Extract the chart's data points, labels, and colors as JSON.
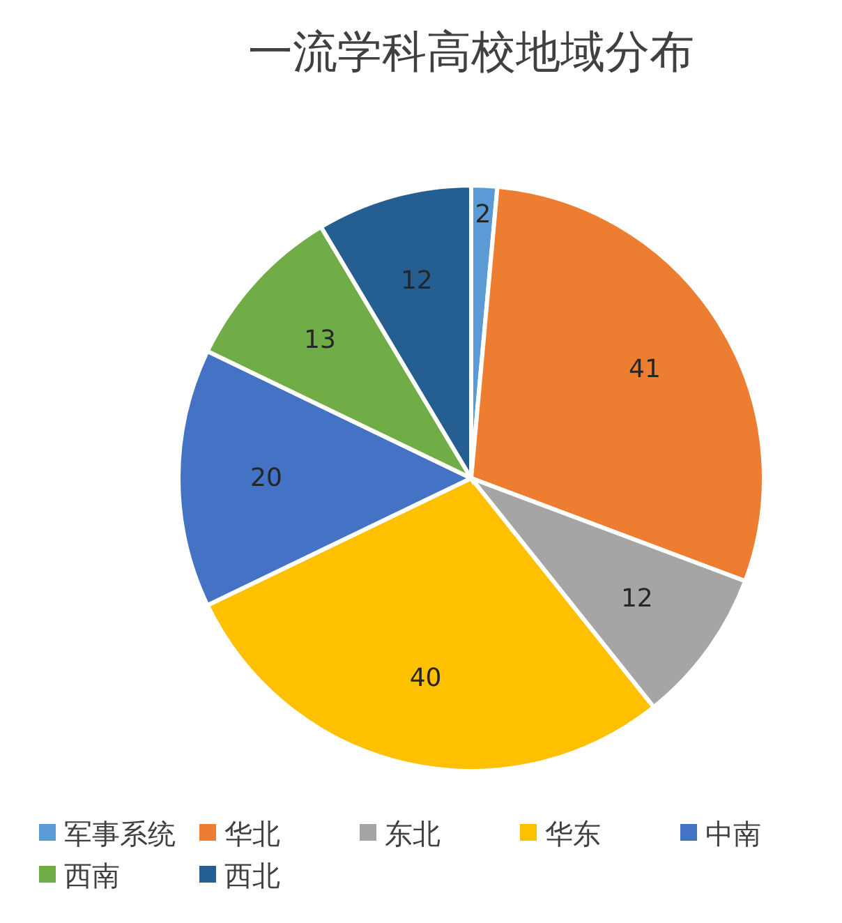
{
  "chart_data": {
    "type": "pie",
    "title": "一流学科高校地域分布",
    "categories": [
      "军事系统",
      "华北",
      "东北",
      "华东",
      "中南",
      "西南",
      "西北"
    ],
    "values": [
      2,
      41,
      12,
      40,
      20,
      13,
      12
    ],
    "colors": [
      "#5b9bd5",
      "#ed7d31",
      "#a5a5a5",
      "#ffc000",
      "#4472c4",
      "#70ad47",
      "#255e91"
    ],
    "data_labels": true,
    "legend": "bottom"
  }
}
